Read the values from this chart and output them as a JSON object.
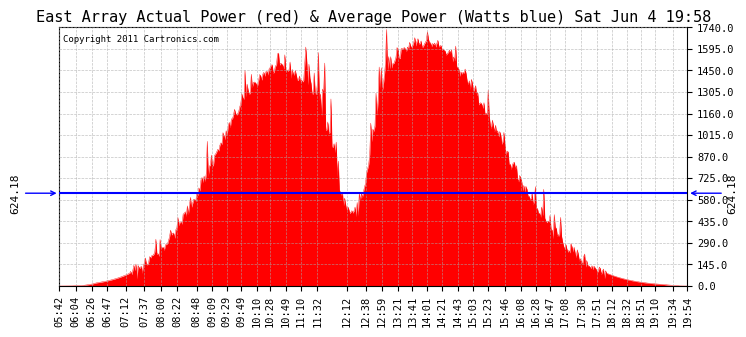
{
  "title": "East Array Actual Power (red) & Average Power (Watts blue) Sat Jun 4 19:58",
  "copyright": "Copyright 2011 Cartronics.com",
  "avg_value": 624.18,
  "y_ticks": [
    0.0,
    145.0,
    290.0,
    435.0,
    580.0,
    725.0,
    870.0,
    1015.0,
    1160.0,
    1305.0,
    1450.0,
    1595.0,
    1740.0
  ],
  "y_max": 1740.0,
  "y_min": 0.0,
  "fill_color": "#FF0000",
  "line_color": "#0000FF",
  "background_color": "#FFFFFF",
  "grid_color": "#AAAAAA",
  "x_labels": [
    "05:42",
    "06:04",
    "06:26",
    "06:47",
    "07:12",
    "07:37",
    "08:00",
    "08:22",
    "08:48",
    "09:09",
    "09:29",
    "09:49",
    "10:10",
    "10:28",
    "10:49",
    "11:10",
    "11:32",
    "12:12",
    "12:38",
    "12:59",
    "13:21",
    "13:41",
    "14:01",
    "14:21",
    "14:43",
    "15:03",
    "15:23",
    "15:46",
    "16:08",
    "16:28",
    "16:47",
    "17:08",
    "17:30",
    "17:51",
    "18:12",
    "18:32",
    "18:51",
    "19:10",
    "19:34",
    "19:54"
  ],
  "title_fontsize": 11,
  "tick_fontsize": 7.5,
  "avg_label_fontsize": 8
}
